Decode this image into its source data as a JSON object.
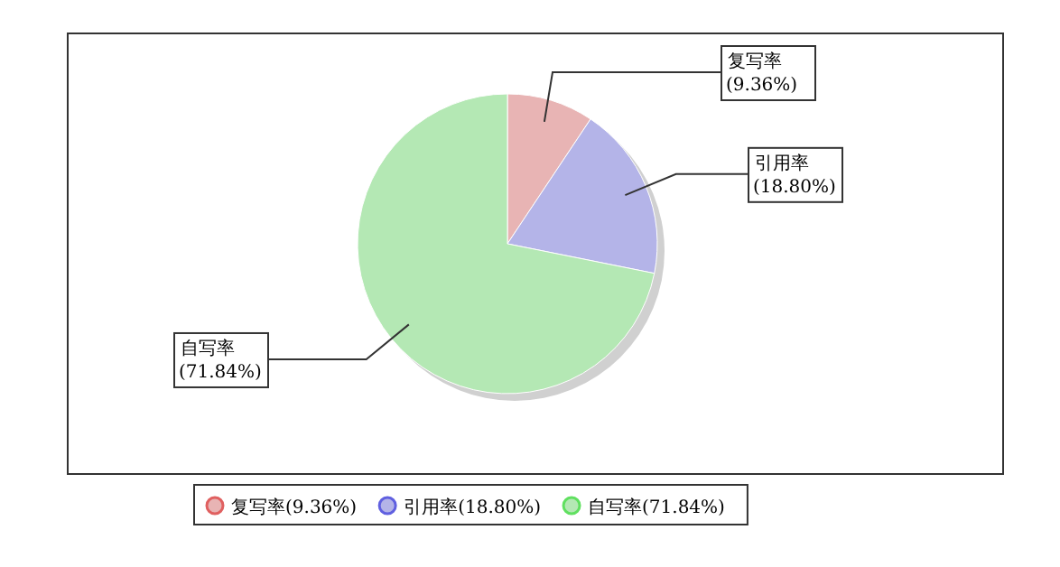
{
  "chart_data": {
    "type": "pie",
    "categories": [
      "复写率",
      "引用率",
      "自写率"
    ],
    "values": [
      9.36,
      18.8,
      71.84
    ],
    "value_labels": [
      "(9.36%)",
      "(18.80%)",
      "(71.84%)"
    ],
    "colors": [
      "#e8b4b4",
      "#b4b4e8",
      "#b4e8b4"
    ],
    "legend": "bottom"
  }
}
